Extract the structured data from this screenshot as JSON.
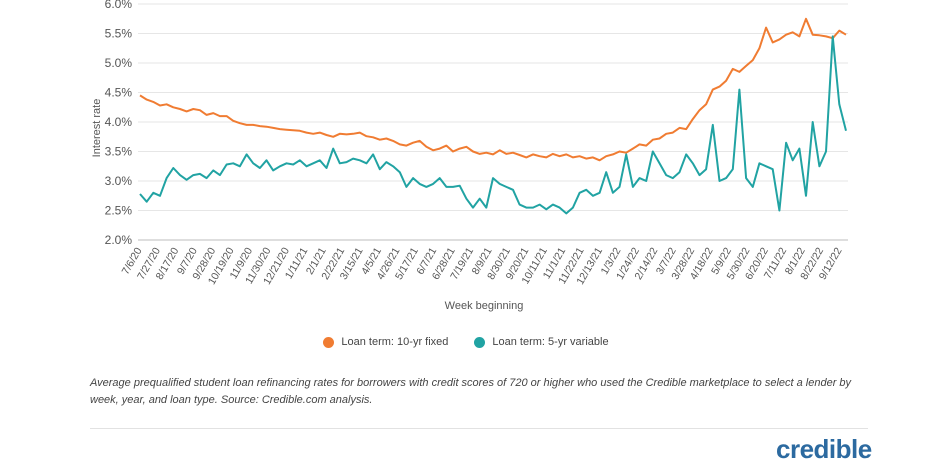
{
  "chart_data": {
    "type": "line",
    "title": "",
    "xlabel": "Week beginning",
    "ylabel": "Interest rate",
    "ylim": [
      2.0,
      6.0
    ],
    "yticks": [
      "2.0%",
      "2.5%",
      "3.0%",
      "3.5%",
      "4.0%",
      "4.5%",
      "5.0%",
      "5.5%",
      "6.0%"
    ],
    "grid": true,
    "legend_position": "bottom",
    "x_tick_labels": [
      "7/6/20",
      "7/27/20",
      "8/17/20",
      "9/7/20",
      "9/28/20",
      "10/19/20",
      "11/9/20",
      "11/30/20",
      "12/21/20",
      "1/11/21",
      "2/1/21",
      "2/22/21",
      "3/15/21",
      "4/5/21",
      "4/26/21",
      "5/17/21",
      "6/7/21",
      "6/28/21",
      "7/19/21",
      "8/9/21",
      "8/30/21",
      "9/20/21",
      "10/11/21",
      "11/1/21",
      "11/22/21",
      "12/13/21",
      "1/3/22",
      "1/24/22",
      "2/14/22",
      "3/7/22",
      "3/28/22",
      "4/18/22",
      "5/9/22",
      "5/30/22",
      "6/20/22",
      "7/11/22",
      "8/1/22",
      "8/22/22",
      "9/12/22"
    ],
    "series": [
      {
        "name": "Loan term: 10-yr fixed",
        "color": "#f07c32",
        "values": [
          4.45,
          4.38,
          4.34,
          4.28,
          4.3,
          4.25,
          4.22,
          4.18,
          4.22,
          4.2,
          4.12,
          4.15,
          4.1,
          4.1,
          4.02,
          3.98,
          3.95,
          3.95,
          3.93,
          3.92,
          3.9,
          3.88,
          3.87,
          3.86,
          3.85,
          3.82,
          3.8,
          3.82,
          3.78,
          3.75,
          3.8,
          3.79,
          3.8,
          3.82,
          3.76,
          3.74,
          3.7,
          3.72,
          3.68,
          3.62,
          3.6,
          3.65,
          3.68,
          3.58,
          3.52,
          3.55,
          3.6,
          3.5,
          3.55,
          3.58,
          3.5,
          3.46,
          3.48,
          3.45,
          3.52,
          3.46,
          3.48,
          3.44,
          3.4,
          3.45,
          3.42,
          3.4,
          3.46,
          3.42,
          3.45,
          3.4,
          3.42,
          3.38,
          3.4,
          3.35,
          3.42,
          3.45,
          3.5,
          3.48,
          3.55,
          3.62,
          3.6,
          3.7,
          3.72,
          3.8,
          3.82,
          3.9,
          3.88,
          4.05,
          4.2,
          4.3,
          4.55,
          4.6,
          4.7,
          4.9,
          4.85,
          4.95,
          5.05,
          5.25,
          5.6,
          5.35,
          5.4,
          5.48,
          5.52,
          5.45,
          5.75,
          5.48,
          5.47,
          5.45,
          5.42,
          5.55,
          5.48
        ]
      },
      {
        "name": "Loan term: 5-yr variable",
        "color": "#21a3a3",
        "values": [
          2.78,
          2.65,
          2.8,
          2.75,
          3.05,
          3.22,
          3.1,
          3.02,
          3.1,
          3.12,
          3.05,
          3.18,
          3.1,
          3.28,
          3.3,
          3.25,
          3.45,
          3.3,
          3.22,
          3.35,
          3.18,
          3.25,
          3.3,
          3.28,
          3.35,
          3.25,
          3.3,
          3.35,
          3.22,
          3.55,
          3.3,
          3.32,
          3.38,
          3.35,
          3.3,
          3.45,
          3.2,
          3.32,
          3.25,
          3.15,
          2.9,
          3.05,
          2.95,
          2.9,
          2.95,
          3.05,
          2.9,
          2.9,
          2.92,
          2.7,
          2.55,
          2.7,
          2.55,
          3.05,
          2.95,
          2.9,
          2.85,
          2.6,
          2.55,
          2.55,
          2.6,
          2.52,
          2.6,
          2.55,
          2.45,
          2.55,
          2.8,
          2.85,
          2.75,
          2.8,
          3.15,
          2.8,
          2.9,
          3.45,
          2.9,
          3.05,
          3.0,
          3.5,
          3.3,
          3.1,
          3.05,
          3.15,
          3.45,
          3.3,
          3.1,
          3.2,
          3.95,
          3.0,
          3.05,
          3.2,
          4.55,
          3.05,
          2.9,
          3.3,
          3.25,
          3.2,
          2.5,
          3.65,
          3.35,
          3.55,
          2.75,
          4.0,
          3.25,
          3.5,
          5.45,
          4.3,
          3.85
        ]
      }
    ]
  },
  "caption": "Average prequalified student loan refinancing rates for borrowers with credit scores of 720 or higher who used the Credible marketplace to select a lender by week, year, and loan type. Source: Credible.com analysis.",
  "brand": "credible"
}
